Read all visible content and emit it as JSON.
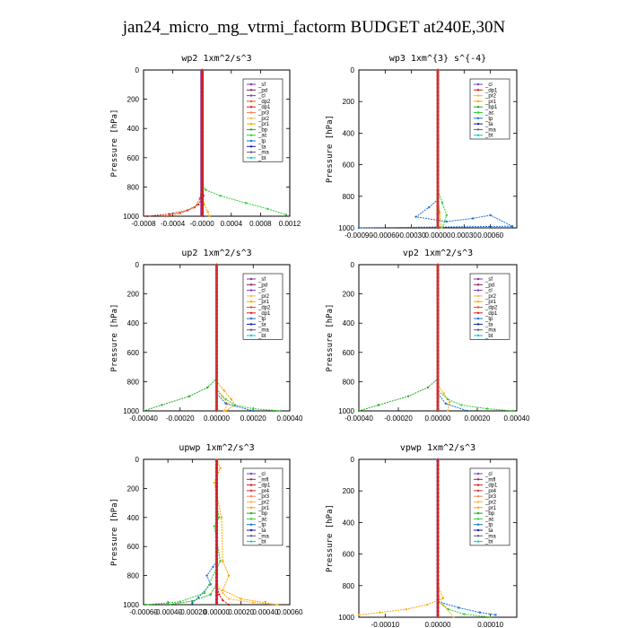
{
  "title": "jan24_micro_mg_vtrmi_factorm  BUDGET at240E,30N",
  "colors": {
    "sf": "#7a2fbf",
    "pd": "#8b2252",
    "cl": "#7b3fc4",
    "dp1": "#d62020",
    "dp2": "#e05a10",
    "pr1": "#ffa500",
    "pr2": "#ffb347",
    "pr3": "#ff7f50",
    "pr4": "#cc3333",
    "bp1": "#22aa22",
    "bp": "#22aa22",
    "ac": "#32cd32",
    "tp": "#1e6fd0",
    "ta": "#1a1aaa",
    "ma": "#606060",
    "bt": "#00ced1",
    "mfl": "#a0206a"
  },
  "chart_data": [
    {
      "type": "line",
      "title": "wp2  1xm^2/s^3",
      "ylabel": "Pressure [hPa]",
      "ylim": [
        1000,
        0
      ],
      "xlim": [
        -0.0008,
        0.0012
      ],
      "xticks": [
        "-0.0008",
        "-0.0004",
        "-0.0000",
        "0.0004",
        "0.0008",
        "0.0012"
      ],
      "xtick_values": [
        -0.0008,
        -0.0004,
        0,
        0.0004,
        0.0008,
        0.0012
      ],
      "yticks": [
        "0",
        "200",
        "400",
        "600",
        "800",
        "1000"
      ],
      "legend": [
        "_sf",
        "_pd",
        "_cl",
        "_dp2",
        "_dp1",
        "_pr3",
        "_pr2",
        "_pr1",
        "_bp",
        "_ac",
        "_tp",
        "_ta",
        "_ma",
        "_bt"
      ],
      "series": [
        {
          "name": "_dp1",
          "color": "#d62020",
          "x": [
            0,
            0,
            2e-05,
            -5e-05,
            -0.0002,
            -0.00045,
            -0.00075
          ],
          "y": [
            0,
            780,
            860,
            920,
            960,
            985,
            1000
          ]
        },
        {
          "name": "_dp2",
          "color": "#e05a10",
          "x": [
            0,
            0,
            -3e-05,
            -0.0001,
            -0.0003,
            -0.0005
          ],
          "y": [
            0,
            800,
            880,
            940,
            980,
            1000
          ]
        },
        {
          "name": "_ac",
          "color": "#32cd32",
          "x": [
            0,
            0,
            5e-05,
            0.00025,
            0.0006,
            0.0009,
            0.00115
          ],
          "y": [
            0,
            780,
            820,
            860,
            910,
            950,
            990
          ]
        },
        {
          "name": "_pr1",
          "color": "#ffa500",
          "x": [
            0,
            0,
            3e-05,
            8e-05,
            0.0001
          ],
          "y": [
            0,
            850,
            920,
            970,
            1000
          ]
        },
        {
          "name": "_sf",
          "color": "#7a2fbf",
          "x": [
            0,
            0,
            0,
            2e-05
          ],
          "y": [
            0,
            900,
            960,
            1000
          ]
        }
      ]
    },
    {
      "type": "line",
      "title": "wp3  1xm^{3} s^{-4}",
      "ylabel": "Pressure [hPa]",
      "ylim": [
        1000,
        0
      ],
      "xlim": [
        -0.0009,
        0.0009
      ],
      "xticks": [
        "-0.00090",
        "-0.00060",
        "-0.00030",
        "0.00000",
        "0.00030",
        "0.00060"
      ],
      "xtick_values": [
        -0.0009,
        -0.0006,
        -0.0003,
        0,
        0.0003,
        0.0006
      ],
      "yticks": [
        "0",
        "200",
        "400",
        "600",
        "800",
        "1000"
      ],
      "legend": [
        "_cl",
        "_dp1",
        "_pr2",
        "_pr1",
        "_bp1",
        "_ac",
        "_tp",
        "_ta",
        "_ma",
        "_bt"
      ],
      "series": [
        {
          "name": "_tp",
          "color": "#1e6fd0",
          "x": [
            0,
            0,
            -0.0001,
            -0.00025,
            0.0001,
            0.0004,
            0.0006,
            0.00085,
            -0.0009
          ],
          "y": [
            0,
            820,
            870,
            930,
            960,
            940,
            920,
            990,
            1000
          ]
        },
        {
          "name": "_ac",
          "color": "#32cd32",
          "x": [
            0,
            0,
            5e-05,
            0.0001,
            5e-05
          ],
          "y": [
            0,
            760,
            840,
            920,
            1000
          ]
        },
        {
          "name": "_pr1",
          "color": "#ffa500",
          "x": [
            0,
            0,
            2e-05,
            4e-05
          ],
          "y": [
            0,
            820,
            900,
            1000
          ]
        },
        {
          "name": "_dp1",
          "color": "#d62020",
          "x": [
            0,
            0,
            0,
            0
          ],
          "y": [
            0,
            500,
            900,
            1000
          ]
        }
      ]
    },
    {
      "type": "line",
      "title": "up2  1xm^2/s^3",
      "ylabel": "Pressure [hPa]",
      "ylim": [
        1000,
        0
      ],
      "xlim": [
        -0.0004,
        0.0004
      ],
      "xticks": [
        "-0.00040",
        "-0.00020",
        "0.00000",
        "0.00020",
        "0.00040"
      ],
      "xtick_values": [
        -0.0004,
        -0.0002,
        0,
        0.0002,
        0.0004
      ],
      "yticks": [
        "0",
        "200",
        "400",
        "600",
        "800",
        "1000"
      ],
      "legend": [
        "_sf",
        "_pd",
        "_cl",
        "_pr2",
        "_pr1",
        "_dp2",
        "_dp1",
        "_tp",
        "_ta",
        "_ma",
        "_bt"
      ],
      "series": [
        {
          "name": "_dp2",
          "color": "#22aa22",
          "x": [
            0,
            0,
            -5e-05,
            -0.00015,
            -0.0003,
            -0.0004
          ],
          "y": [
            0,
            780,
            840,
            900,
            960,
            1000
          ]
        },
        {
          "name": "_pr1",
          "color": "#ffa500",
          "x": [
            0,
            0,
            4e-05,
            8e-05,
            0.0001,
            5e-05
          ],
          "y": [
            0,
            800,
            860,
            920,
            960,
            1000
          ]
        },
        {
          "name": "_pr2",
          "color": "#ffb347",
          "x": [
            0,
            0,
            3e-05,
            6e-05,
            4e-05
          ],
          "y": [
            0,
            840,
            900,
            950,
            1000
          ]
        },
        {
          "name": "_dp1",
          "color": "#32cd32",
          "x": [
            0,
            0,
            5e-05,
            0.0001,
            0.0002,
            0.00035
          ],
          "y": [
            0,
            860,
            920,
            960,
            985,
            1000
          ]
        },
        {
          "name": "_tp",
          "color": "#1e6fd0",
          "x": [
            0,
            0,
            5e-05,
            0.0002
          ],
          "y": [
            0,
            880,
            950,
            1000
          ]
        },
        {
          "name": "_cl",
          "color": "#d62020",
          "x": [
            0,
            0,
            0,
            0
          ],
          "y": [
            0,
            500,
            900,
            1000
          ]
        }
      ]
    },
    {
      "type": "line",
      "title": "vp2  1xm^2/s^3",
      "ylabel": "Pressure [hPa]",
      "ylim": [
        1000,
        0
      ],
      "xlim": [
        -0.0004,
        0.0004
      ],
      "xticks": [
        "-0.00040",
        "-0.00020",
        "0.00000",
        "0.00020",
        "0.00040"
      ],
      "xtick_values": [
        -0.0004,
        -0.0002,
        0,
        0.0002,
        0.0004
      ],
      "yticks": [
        "0",
        "200",
        "400",
        "600",
        "800",
        "1000"
      ],
      "legend": [
        "_sf",
        "_pd",
        "_cl",
        "_pr2",
        "_pr1",
        "_dp2",
        "_dp1",
        "_tp",
        "_ta",
        "_ma",
        "_bt"
      ],
      "series": [
        {
          "name": "_dp2",
          "color": "#22aa22",
          "x": [
            0,
            0,
            -5e-05,
            -0.00015,
            -0.0003,
            -0.0004
          ],
          "y": [
            0,
            780,
            840,
            900,
            960,
            1000
          ]
        },
        {
          "name": "_pr1",
          "color": "#ffa500",
          "x": [
            0,
            0,
            3e-05,
            6e-05,
            5e-05
          ],
          "y": [
            0,
            820,
            880,
            940,
            1000
          ]
        },
        {
          "name": "_dp1",
          "color": "#32cd32",
          "x": [
            0,
            0,
            5e-05,
            0.00012,
            0.00025,
            0.00038
          ],
          "y": [
            0,
            860,
            920,
            960,
            985,
            1000
          ]
        },
        {
          "name": "_tp",
          "color": "#1e6fd0",
          "x": [
            0,
            0,
            4e-05,
            0.00015
          ],
          "y": [
            0,
            880,
            950,
            1000
          ]
        },
        {
          "name": "_cl",
          "color": "#d62020",
          "x": [
            0,
            0,
            0,
            0
          ],
          "y": [
            0,
            500,
            900,
            1000
          ]
        }
      ]
    },
    {
      "type": "line",
      "title": "upwp  1xm^2/s^3",
      "ylabel": "Pressure [hPa]",
      "ylim": [
        1000,
        0
      ],
      "xlim": [
        -0.0006,
        0.0006
      ],
      "xticks": [
        "-0.00060",
        "-0.00040",
        "-0.00020",
        "0.00000",
        "0.00020",
        "0.00040",
        "0.00060"
      ],
      "xtick_values": [
        -0.0006,
        -0.0004,
        -0.0002,
        0,
        0.0002,
        0.0004,
        0.0006
      ],
      "yticks": [
        "0",
        "200",
        "400",
        "600",
        "800",
        "1000"
      ],
      "legend": [
        "_cl",
        "_mfl",
        "_dp1",
        "_pr4",
        "_pr3",
        "_pr2",
        "_pr1",
        "_bp",
        "_ac",
        "_tp",
        "_ta",
        "_ma",
        "_bt"
      ],
      "series": [
        {
          "name": "_pr1",
          "color": "#ffa500",
          "x": [
            0,
            3e-05,
            -2e-05,
            4e-05,
            5e-05,
            0.0001,
            5e-05,
            0.0002,
            0.0005
          ],
          "y": [
            0,
            60,
            160,
            400,
            700,
            800,
            900,
            960,
            1000
          ]
        },
        {
          "name": "_tp",
          "color": "#1e6fd0",
          "x": [
            0,
            0,
            -3e-05,
            -8e-05,
            -5e-05,
            -0.00015,
            -0.0002
          ],
          "y": [
            0,
            700,
            740,
            800,
            860,
            950,
            990
          ]
        },
        {
          "name": "_ac",
          "color": "#32cd32",
          "x": [
            0,
            0,
            2e-05,
            -2e-05,
            3e-05,
            -0.0001,
            -0.0003,
            -0.00058
          ],
          "y": [
            0,
            300,
            400,
            460,
            700,
            920,
            980,
            1000
          ]
        },
        {
          "name": "_bp",
          "color": "#22aa22",
          "x": [
            0,
            0,
            -5e-05,
            -0.0002,
            -0.0004
          ],
          "y": [
            0,
            860,
            930,
            975,
            1000
          ]
        },
        {
          "name": "_dp1",
          "color": "#d62020",
          "x": [
            0,
            0,
            2e-05,
            5e-05,
            0.0001
          ],
          "y": [
            0,
            850,
            930,
            970,
            1000
          ]
        },
        {
          "name": "_pr2",
          "color": "#ffb347",
          "x": [
            0,
            0,
            5e-05,
            0.0001,
            0.0003,
            0.0005
          ],
          "y": [
            0,
            860,
            920,
            960,
            985,
            1000
          ]
        }
      ]
    },
    {
      "type": "line",
      "title": "vpwp  1xm^2/s^3",
      "ylabel": "Pressure [hPa]",
      "ylim": [
        1000,
        0
      ],
      "xlim": [
        -0.00015,
        0.00015
      ],
      "xticks": [
        "-0.00010",
        "0.00000",
        "0.00010"
      ],
      "xtick_values": [
        -0.0001,
        0,
        0.0001
      ],
      "yticks": [
        "0",
        "200",
        "400",
        "600",
        "800",
        "1000"
      ],
      "legend": [
        "_cl",
        "_mfl",
        "_dp1",
        "_pr4",
        "_pr3",
        "_pr2",
        "_pr1",
        "_bp",
        "_ac",
        "_tp",
        "_ta",
        "_ma",
        "_bt"
      ],
      "series": [
        {
          "name": "_pr1",
          "color": "#ffa500",
          "x": [
            0,
            0,
            1e-05,
            -2e-05,
            -6e-05,
            -0.00011,
            -0.00015
          ],
          "y": [
            0,
            800,
            880,
            920,
            950,
            970,
            985
          ]
        },
        {
          "name": "_pr2",
          "color": "#ffb347",
          "x": [
            0,
            0,
            1e-05,
            3e-05
          ],
          "y": [
            0,
            850,
            920,
            1000
          ]
        },
        {
          "name": "_tp",
          "color": "#1e6fd0",
          "x": [
            0,
            0,
            4e-05,
            8e-05,
            0.00011
          ],
          "y": [
            0,
            900,
            940,
            970,
            985
          ]
        },
        {
          "name": "_ac",
          "color": "#32cd32",
          "x": [
            0,
            0,
            2e-05,
            5e-05,
            0.0001
          ],
          "y": [
            0,
            900,
            950,
            980,
            1000
          ]
        },
        {
          "name": "_cl",
          "color": "#7b3fc4",
          "x": [
            0,
            0,
            0,
            0
          ],
          "y": [
            0,
            500,
            900,
            1000
          ]
        }
      ]
    }
  ]
}
